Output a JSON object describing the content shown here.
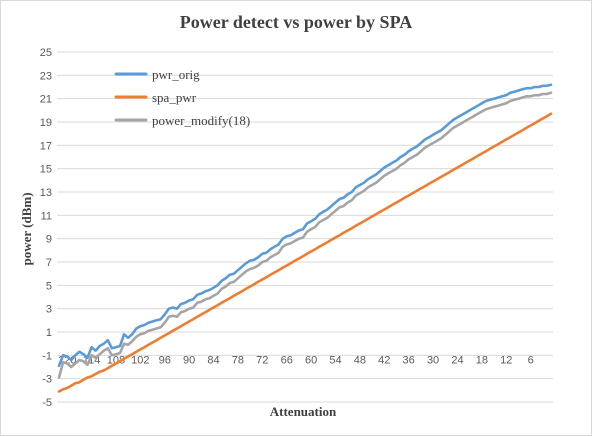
{
  "chart_data": {
    "type": "line",
    "title": "Power detect vs power by SPA",
    "xlabel": "Attenuation",
    "ylabel": "power (dBm)",
    "ylim": [
      -5,
      25
    ],
    "yticks": [
      -5,
      -3,
      -1,
      1,
      3,
      5,
      7,
      9,
      11,
      13,
      15,
      17,
      19,
      21,
      23,
      25
    ],
    "grid": true,
    "legend_position": "top-left",
    "x_label_step": 6,
    "x": [
      122,
      121,
      120,
      119,
      118,
      117,
      116,
      115,
      114,
      113,
      112,
      111,
      110,
      109,
      108,
      107,
      106,
      105,
      104,
      103,
      102,
      101,
      100,
      99,
      98,
      97,
      96,
      95,
      94,
      93,
      92,
      91,
      90,
      89,
      88,
      87,
      86,
      85,
      84,
      83,
      82,
      81,
      80,
      79,
      78,
      77,
      76,
      75,
      74,
      73,
      72,
      71,
      70,
      69,
      68,
      67,
      66,
      65,
      64,
      63,
      62,
      61,
      60,
      59,
      58,
      57,
      56,
      55,
      54,
      53,
      52,
      51,
      50,
      49,
      48,
      47,
      46,
      45,
      44,
      43,
      42,
      41,
      40,
      39,
      38,
      37,
      36,
      35,
      34,
      33,
      32,
      31,
      30,
      29,
      28,
      27,
      26,
      25,
      24,
      23,
      22,
      21,
      20,
      19,
      18,
      17,
      16,
      15,
      14,
      13,
      12,
      11,
      10,
      9,
      8,
      7,
      6,
      5,
      4,
      3,
      2,
      1
    ],
    "xtick_labels": [
      "120",
      "114",
      "108",
      "102",
      "96",
      "90",
      "84",
      "78",
      "72",
      "66",
      "60",
      "54",
      "48",
      "42",
      "36",
      "30",
      "24",
      "18",
      "12",
      "6"
    ],
    "series": [
      {
        "name": "pwr_orig",
        "color": "#5b9bd5",
        "values": [
          -1.9,
          -1.0,
          -1.1,
          -1.4,
          -1.0,
          -0.7,
          -0.9,
          -1.2,
          -0.3,
          -0.6,
          -0.2,
          0.0,
          0.3,
          -0.4,
          -0.3,
          -0.2,
          0.8,
          0.5,
          0.8,
          1.3,
          1.5,
          1.6,
          1.8,
          1.9,
          2.0,
          2.1,
          2.5,
          3.0,
          3.1,
          3.0,
          3.4,
          3.5,
          3.7,
          3.8,
          4.2,
          4.3,
          4.5,
          4.6,
          4.8,
          5.0,
          5.4,
          5.6,
          5.9,
          6.0,
          6.3,
          6.6,
          6.9,
          7.1,
          7.2,
          7.4,
          7.7,
          7.8,
          8.1,
          8.3,
          8.5,
          9.0,
          9.2,
          9.3,
          9.5,
          9.7,
          9.8,
          10.3,
          10.5,
          10.7,
          11.1,
          11.3,
          11.5,
          11.8,
          12.1,
          12.4,
          12.5,
          12.8,
          13.0,
          13.4,
          13.6,
          13.8,
          14.1,
          14.3,
          14.5,
          14.8,
          15.1,
          15.3,
          15.5,
          15.7,
          16.0,
          16.2,
          16.5,
          16.7,
          16.9,
          17.2,
          17.5,
          17.7,
          17.9,
          18.1,
          18.3,
          18.6,
          18.9,
          19.2,
          19.4,
          19.6,
          19.8,
          20.0,
          20.2,
          20.4,
          20.6,
          20.8,
          20.9,
          21.0,
          21.1,
          21.2,
          21.3,
          21.5,
          21.6,
          21.7,
          21.8,
          21.9,
          21.9,
          22.0,
          22.0,
          22.1,
          22.1,
          22.2
        ]
      },
      {
        "name": "spa_pwr",
        "color": "#ed7d31",
        "values": [
          -4.1,
          -3.9,
          -3.8,
          -3.6,
          -3.4,
          -3.3,
          -3.1,
          -2.9,
          -2.8,
          -2.6,
          -2.4,
          -2.3,
          -2.1,
          -1.9,
          -1.7,
          -1.5,
          -1.3,
          -1.1,
          -0.9,
          -0.7,
          -0.5,
          -0.3,
          -0.1,
          0.1,
          0.3,
          0.5,
          0.7,
          0.9,
          1.1,
          1.3,
          1.5,
          1.7,
          1.9,
          2.1,
          2.3,
          2.5,
          2.7,
          2.9,
          3.1,
          3.3,
          3.5,
          3.7,
          3.9,
          4.1,
          4.3,
          4.5,
          4.7,
          4.9,
          5.1,
          5.3,
          5.5,
          5.7,
          5.9,
          6.1,
          6.3,
          6.5,
          6.7,
          6.9,
          7.1,
          7.3,
          7.5,
          7.7,
          7.9,
          8.1,
          8.3,
          8.5,
          8.7,
          8.9,
          9.1,
          9.3,
          9.5,
          9.7,
          9.9,
          10.1,
          10.3,
          10.5,
          10.7,
          10.9,
          11.1,
          11.3,
          11.5,
          11.7,
          11.9,
          12.1,
          12.3,
          12.5,
          12.7,
          12.9,
          13.1,
          13.3,
          13.5,
          13.7,
          13.9,
          14.1,
          14.3,
          14.5,
          14.7,
          14.9,
          15.1,
          15.3,
          15.5,
          15.7,
          15.9,
          16.1,
          16.3,
          16.5,
          16.7,
          16.9,
          17.1,
          17.3,
          17.5,
          17.7,
          17.9,
          18.1,
          18.3,
          18.5,
          18.7,
          18.9,
          19.1,
          19.3,
          19.5,
          19.7
        ]
      },
      {
        "name": "power_modify(18)",
        "color": "#a5a5a5",
        "values": [
          -2.9,
          -1.6,
          -1.7,
          -2.0,
          -1.7,
          -1.4,
          -1.5,
          -1.8,
          -1.0,
          -1.2,
          -0.9,
          -0.6,
          -0.4,
          -1.0,
          -0.9,
          -0.8,
          0.0,
          -0.1,
          0.2,
          0.6,
          0.8,
          0.9,
          1.1,
          1.2,
          1.3,
          1.4,
          1.8,
          2.3,
          2.4,
          2.3,
          2.7,
          2.8,
          3.0,
          3.1,
          3.5,
          3.6,
          3.8,
          3.9,
          4.1,
          4.3,
          4.7,
          4.9,
          5.2,
          5.3,
          5.6,
          5.9,
          6.2,
          6.4,
          6.5,
          6.7,
          7.0,
          7.1,
          7.4,
          7.6,
          7.8,
          8.3,
          8.5,
          8.6,
          8.8,
          9.0,
          9.1,
          9.6,
          9.8,
          10.0,
          10.4,
          10.6,
          10.8,
          11.1,
          11.4,
          11.7,
          11.8,
          12.1,
          12.3,
          12.7,
          12.9,
          13.1,
          13.4,
          13.6,
          13.8,
          14.1,
          14.4,
          14.6,
          14.8,
          15.0,
          15.3,
          15.5,
          15.8,
          16.0,
          16.2,
          16.5,
          16.8,
          17.0,
          17.2,
          17.4,
          17.6,
          17.9,
          18.2,
          18.5,
          18.7,
          18.9,
          19.1,
          19.3,
          19.5,
          19.7,
          19.9,
          20.1,
          20.2,
          20.3,
          20.4,
          20.5,
          20.6,
          20.8,
          20.9,
          21.0,
          21.1,
          21.2,
          21.2,
          21.3,
          21.3,
          21.4,
          21.4,
          21.5
        ]
      }
    ]
  }
}
